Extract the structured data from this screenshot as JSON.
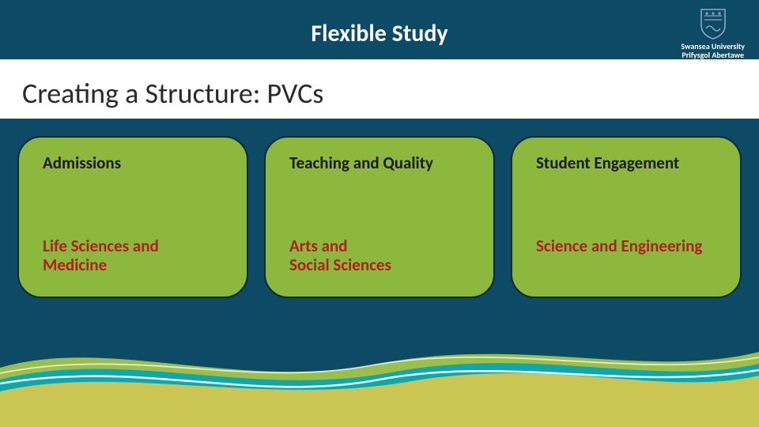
{
  "slide": {
    "background_color": "#0d4a66",
    "title": "Flexible Study",
    "title_color": "#ffffff",
    "title_fontsize": 30,
    "subtitle": "Creating a Structure: PVCs",
    "subtitle_color": "#2a2a2a",
    "subtitle_bg": "#ffffff",
    "subtitle_fontsize": 36
  },
  "logo": {
    "primary_text": "Swansea University",
    "secondary_text": "Prifysgol Abertawe",
    "shield_color": "#8aa9c2",
    "text_color": "#ffffff"
  },
  "panels": {
    "bg_color": "#8db83e",
    "border_color": "#0a2a3a",
    "border_radius": 30,
    "top_text_color": "#1a1a1a",
    "bottom_text_color": "#b02020",
    "fontsize": 21,
    "items": [
      {
        "top": "Admissions",
        "bottom": "Life Sciences and Medicine"
      },
      {
        "top": "Teaching and Quality",
        "bottom": "Arts and\nSocial Sciences"
      },
      {
        "top": "Student Engagement",
        "bottom": "Science and Engineering"
      }
    ]
  },
  "waves": {
    "colors": [
      "#a8c94a",
      "#00a6b8",
      "#e0c84a",
      "#ffffff"
    ],
    "height": 130
  }
}
